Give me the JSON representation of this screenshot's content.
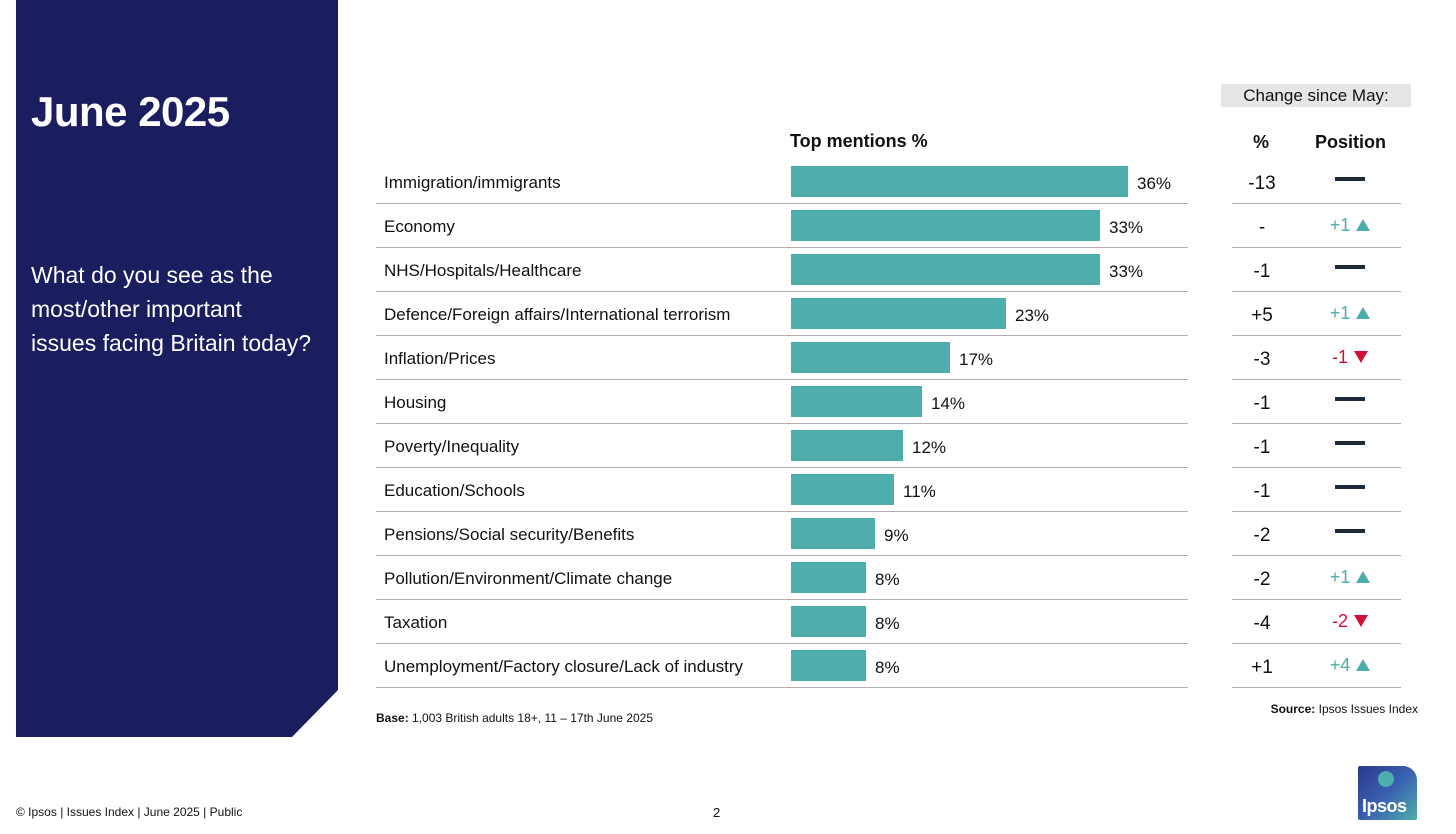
{
  "side": {
    "title": "June 2025",
    "question": "What do you see as the most/other important issues facing Britain today?"
  },
  "headers": {
    "top_mentions": "Top mentions %",
    "change_since": "Change since May:",
    "pct": "%",
    "position": "Position"
  },
  "colors": {
    "bar": "#4eaeab",
    "panel": "#1a1d5e",
    "up": "#4eaeab",
    "down": "#d0103a",
    "same": "#1e2b3c"
  },
  "chart_data": {
    "type": "bar",
    "orientation": "horizontal",
    "categories": [
      "Immigration/immigrants",
      "Economy",
      "NHS/Hospitals/Healthcare",
      "Defence/Foreign affairs/International terrorism",
      "Inflation/Prices",
      "Housing",
      "Poverty/Inequality",
      "Education/Schools",
      "Pensions/Social security/Benefits",
      "Pollution/Environment/Climate change",
      "Taxation",
      "Unemployment/Factory closure/Lack of industry"
    ],
    "values": [
      36,
      33,
      33,
      23,
      17,
      14,
      12,
      11,
      9,
      8,
      8,
      8
    ],
    "value_labels": [
      "36%",
      "33%",
      "33%",
      "23%",
      "17%",
      "14%",
      "12%",
      "11%",
      "9%",
      "8%",
      "8%",
      "8%"
    ],
    "change_pct": [
      "-13",
      "-",
      "-1",
      "+5",
      "-3",
      "-1",
      "-1",
      "-1",
      "-2",
      "-2",
      "-4",
      "+1"
    ],
    "position_change": [
      {
        "dir": "same",
        "label": ""
      },
      {
        "dir": "up",
        "label": "+1"
      },
      {
        "dir": "same",
        "label": ""
      },
      {
        "dir": "up",
        "label": "+1"
      },
      {
        "dir": "down",
        "label": "-1"
      },
      {
        "dir": "same",
        "label": ""
      },
      {
        "dir": "same",
        "label": ""
      },
      {
        "dir": "same",
        "label": ""
      },
      {
        "dir": "same",
        "label": ""
      },
      {
        "dir": "up",
        "label": "+1"
      },
      {
        "dir": "down",
        "label": "-2"
      },
      {
        "dir": "up",
        "label": "+4"
      }
    ],
    "xlim": [
      0,
      36
    ]
  },
  "notes": {
    "base_label": "Base:",
    "base_text": "1,003 British adults 18+, 11 – 17th June 2025",
    "source_label": "Source:",
    "source_text": "Ipsos Issues Index"
  },
  "footer": {
    "left": "© Ipsos | Issues Index | June 2025 | Public",
    "page": "2"
  },
  "logo": {
    "text": "Ipsos"
  }
}
